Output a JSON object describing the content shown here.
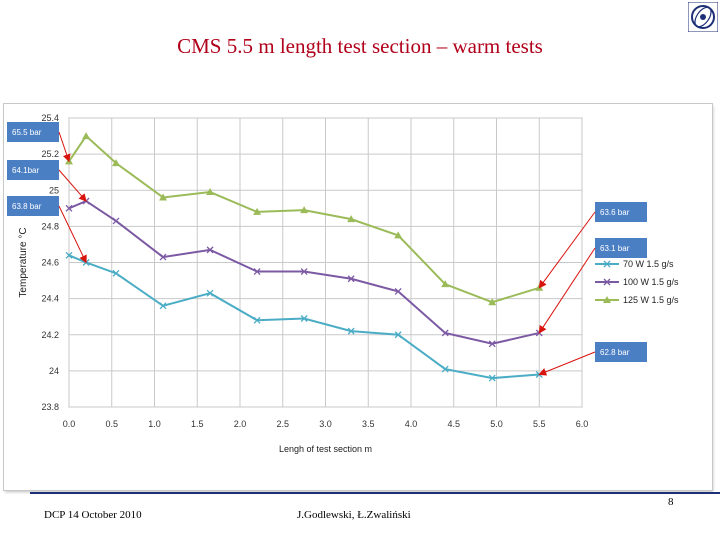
{
  "slide": {
    "title": "CMS 5.5 m length test section – warm tests",
    "footer_left": "DCP  14 October 2010",
    "footer_center": "J.Godlewski, Ł.Zwaliński",
    "page_number": "8"
  },
  "colors": {
    "title": "#b0001a",
    "series_70": "#4aacc5",
    "series_100": "#7b59a3",
    "series_125": "#9bbb59",
    "callout": "#4b7fc4",
    "arrow": "#d9140f"
  },
  "chart_data": {
    "type": "line",
    "title": "",
    "xlabel": "Lengh of test section m",
    "ylabel": "Temperature °C",
    "xlim": [
      0.0,
      6.0
    ],
    "ylim": [
      23.8,
      25.4
    ],
    "x_ticks": [
      "0.0",
      "0.5",
      "1.0",
      "1.5",
      "2.0",
      "2.5",
      "3.0",
      "3.5",
      "4.0",
      "4.5",
      "5.0",
      "5.5",
      "6.0"
    ],
    "y_ticks": [
      "25.4",
      "25.2",
      "25",
      "24.8",
      "24.6",
      "24.4",
      "24.2",
      "24",
      "23.8"
    ],
    "grid": true,
    "legend_position": "right",
    "series": [
      {
        "name": "70 W 1.5 g/s",
        "marker": "x",
        "x": [
          0.0,
          0.2,
          0.55,
          1.1,
          1.65,
          2.2,
          2.75,
          3.3,
          3.85,
          4.4,
          4.95,
          5.5
        ],
        "values": [
          24.64,
          24.6,
          24.54,
          24.36,
          24.43,
          24.28,
          24.29,
          24.22,
          24.2,
          24.01,
          23.96,
          23.98
        ]
      },
      {
        "name": "100 W 1.5 g/s",
        "marker": "x",
        "x": [
          0.0,
          0.2,
          0.55,
          1.1,
          1.65,
          2.2,
          2.75,
          3.3,
          3.85,
          4.4,
          4.95,
          5.5
        ],
        "values": [
          24.9,
          24.94,
          24.83,
          24.63,
          24.67,
          24.55,
          24.55,
          24.51,
          24.44,
          24.21,
          24.15,
          24.21
        ]
      },
      {
        "name": "125 W 1.5 g/s",
        "marker": "triangle",
        "x": [
          0.0,
          0.2,
          0.55,
          1.1,
          1.65,
          2.2,
          2.75,
          3.3,
          3.85,
          4.4,
          4.95,
          5.5
        ],
        "values": [
          25.16,
          25.3,
          25.15,
          24.96,
          24.99,
          24.88,
          24.89,
          24.84,
          24.75,
          24.48,
          24.38,
          24.46
        ]
      }
    ],
    "annotations": [
      {
        "text": "65.5 bar",
        "target": {
          "x": 0.0,
          "y": 25.16
        }
      },
      {
        "text": "64.1bar",
        "target": {
          "x": 0.2,
          "y": 24.94
        }
      },
      {
        "text": "63.8 bar",
        "target": {
          "x": 0.2,
          "y": 24.6
        }
      },
      {
        "text": "63.6 bar",
        "target": {
          "x": 5.5,
          "y": 24.46
        }
      },
      {
        "text": "63.1 bar",
        "target": {
          "x": 5.5,
          "y": 24.21
        }
      },
      {
        "text": "62.8 bar",
        "target": {
          "x": 5.5,
          "y": 23.98
        }
      }
    ]
  }
}
